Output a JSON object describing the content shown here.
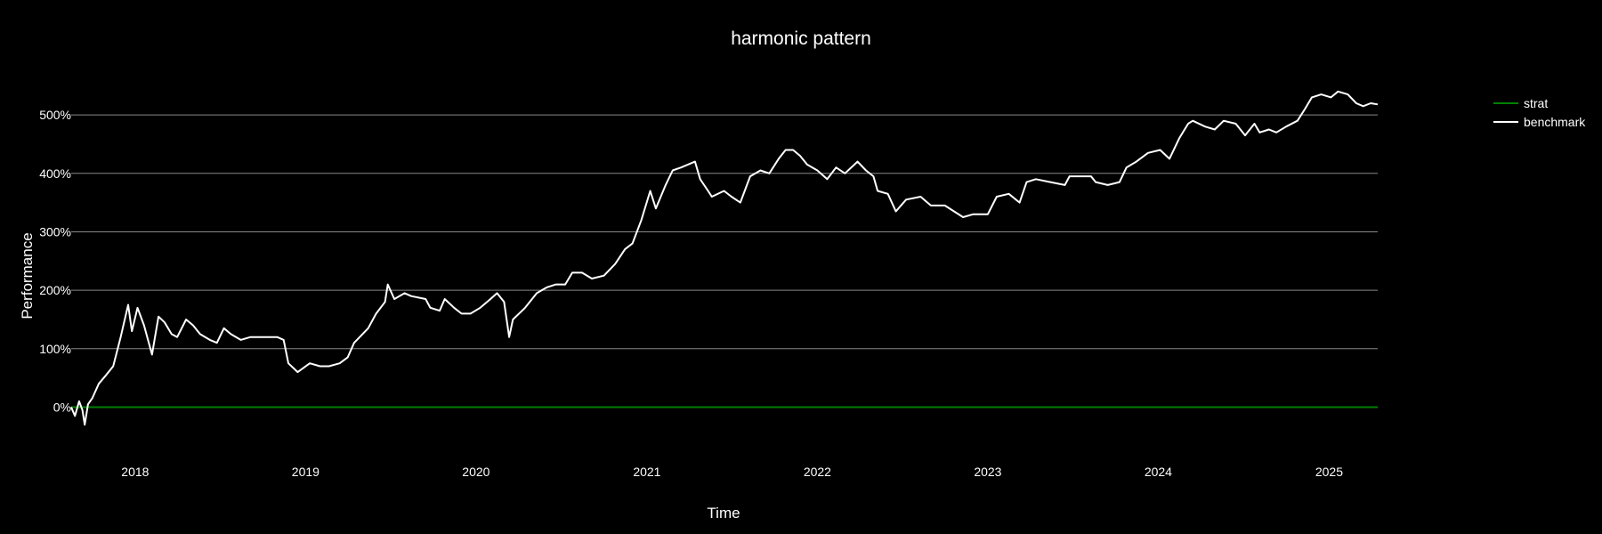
{
  "chart_data": {
    "type": "line",
    "title": "harmonic pattern",
    "xlabel": "Time",
    "ylabel": "Performance",
    "x_ticks": [
      "2018",
      "2019",
      "2020",
      "2021",
      "2022",
      "2023",
      "2024",
      "2025"
    ],
    "y_ticks": [
      {
        "value": 0,
        "label": "0%"
      },
      {
        "value": 100,
        "label": "100%"
      },
      {
        "value": 200,
        "label": "200%"
      },
      {
        "value": 300,
        "label": "300%"
      },
      {
        "value": 400,
        "label": "400%"
      },
      {
        "value": 500,
        "label": "500%"
      }
    ],
    "xlim": [
      "2017-08-17",
      "2025-04-15"
    ],
    "ylim": [
      -80,
      590
    ],
    "grid": "horizontal",
    "legend_position": "top-right",
    "background_color": "#000000",
    "series": [
      {
        "name": "strat",
        "color": "#008000",
        "points": [
          [
            "2017-08-17",
            0
          ],
          [
            "2025-04-15",
            0
          ]
        ]
      },
      {
        "name": "benchmark",
        "color": "#ffffff",
        "points": [
          [
            "2017-08-17",
            0
          ],
          [
            "2017-08-25",
            -15
          ],
          [
            "2017-09-03",
            10
          ],
          [
            "2017-09-10",
            -5
          ],
          [
            "2017-09-15",
            -30
          ],
          [
            "2017-09-22",
            5
          ],
          [
            "2017-10-01",
            15
          ],
          [
            "2017-10-15",
            40
          ],
          [
            "2017-10-31",
            55
          ],
          [
            "2017-11-15",
            70
          ],
          [
            "2017-12-01",
            120
          ],
          [
            "2017-12-17",
            175
          ],
          [
            "2017-12-25",
            130
          ],
          [
            "2018-01-06",
            170
          ],
          [
            "2018-01-20",
            140
          ],
          [
            "2018-02-06",
            90
          ],
          [
            "2018-02-20",
            155
          ],
          [
            "2018-03-05",
            145
          ],
          [
            "2018-03-20",
            125
          ],
          [
            "2018-04-01",
            120
          ],
          [
            "2018-04-20",
            150
          ],
          [
            "2018-05-05",
            140
          ],
          [
            "2018-05-20",
            125
          ],
          [
            "2018-06-10",
            115
          ],
          [
            "2018-06-25",
            110
          ],
          [
            "2018-07-10",
            135
          ],
          [
            "2018-07-25",
            125
          ],
          [
            "2018-08-15",
            115
          ],
          [
            "2018-09-05",
            120
          ],
          [
            "2018-10-01",
            120
          ],
          [
            "2018-11-01",
            120
          ],
          [
            "2018-11-15",
            115
          ],
          [
            "2018-11-25",
            75
          ],
          [
            "2018-12-15",
            60
          ],
          [
            "2019-01-10",
            75
          ],
          [
            "2019-02-01",
            70
          ],
          [
            "2019-02-20",
            70
          ],
          [
            "2019-03-15",
            75
          ],
          [
            "2019-04-01",
            85
          ],
          [
            "2019-04-15",
            110
          ],
          [
            "2019-05-15",
            135
          ],
          [
            "2019-06-01",
            160
          ],
          [
            "2019-06-20",
            180
          ],
          [
            "2019-06-26",
            210
          ],
          [
            "2019-07-10",
            185
          ],
          [
            "2019-08-01",
            195
          ],
          [
            "2019-08-15",
            190
          ],
          [
            "2019-09-15",
            185
          ],
          [
            "2019-09-25",
            170
          ],
          [
            "2019-10-15",
            165
          ],
          [
            "2019-10-26",
            185
          ],
          [
            "2019-11-15",
            170
          ],
          [
            "2019-12-01",
            160
          ],
          [
            "2019-12-20",
            160
          ],
          [
            "2020-01-10",
            170
          ],
          [
            "2020-02-01",
            185
          ],
          [
            "2020-02-15",
            195
          ],
          [
            "2020-03-01",
            180
          ],
          [
            "2020-03-12",
            120
          ],
          [
            "2020-03-20",
            150
          ],
          [
            "2020-04-15",
            170
          ],
          [
            "2020-05-10",
            195
          ],
          [
            "2020-06-01",
            205
          ],
          [
            "2020-06-20",
            210
          ],
          [
            "2020-07-10",
            210
          ],
          [
            "2020-07-25",
            230
          ],
          [
            "2020-08-15",
            230
          ],
          [
            "2020-09-05",
            220
          ],
          [
            "2020-10-01",
            225
          ],
          [
            "2020-10-25",
            245
          ],
          [
            "2020-11-15",
            270
          ],
          [
            "2020-12-01",
            280
          ],
          [
            "2020-12-20",
            320
          ],
          [
            "2021-01-08",
            370
          ],
          [
            "2021-01-20",
            340
          ],
          [
            "2021-02-10",
            380
          ],
          [
            "2021-02-25",
            405
          ],
          [
            "2021-03-15",
            410
          ],
          [
            "2021-04-14",
            420
          ],
          [
            "2021-04-25",
            390
          ],
          [
            "2021-05-12",
            370
          ],
          [
            "2021-05-20",
            360
          ],
          [
            "2021-06-15",
            370
          ],
          [
            "2021-07-01",
            360
          ],
          [
            "2021-07-20",
            350
          ],
          [
            "2021-08-10",
            395
          ],
          [
            "2021-09-01",
            405
          ],
          [
            "2021-09-20",
            400
          ],
          [
            "2021-10-10",
            425
          ],
          [
            "2021-10-25",
            440
          ],
          [
            "2021-11-10",
            440
          ],
          [
            "2021-11-25",
            430
          ],
          [
            "2021-12-10",
            415
          ],
          [
            "2022-01-01",
            405
          ],
          [
            "2022-01-22",
            390
          ],
          [
            "2022-02-10",
            410
          ],
          [
            "2022-03-01",
            400
          ],
          [
            "2022-03-28",
            420
          ],
          [
            "2022-04-15",
            405
          ],
          [
            "2022-05-01",
            395
          ],
          [
            "2022-05-10",
            370
          ],
          [
            "2022-06-01",
            365
          ],
          [
            "2022-06-18",
            335
          ],
          [
            "2022-07-10",
            355
          ],
          [
            "2022-08-10",
            360
          ],
          [
            "2022-09-01",
            345
          ],
          [
            "2022-10-01",
            345
          ],
          [
            "2022-11-09",
            325
          ],
          [
            "2022-12-01",
            330
          ],
          [
            "2023-01-01",
            330
          ],
          [
            "2023-01-20",
            360
          ],
          [
            "2023-02-15",
            365
          ],
          [
            "2023-03-10",
            350
          ],
          [
            "2023-03-25",
            385
          ],
          [
            "2023-04-14",
            390
          ],
          [
            "2023-05-15",
            385
          ],
          [
            "2023-06-15",
            380
          ],
          [
            "2023-06-25",
            395
          ],
          [
            "2023-07-15",
            395
          ],
          [
            "2023-08-10",
            395
          ],
          [
            "2023-08-20",
            385
          ],
          [
            "2023-09-15",
            380
          ],
          [
            "2023-10-10",
            385
          ],
          [
            "2023-10-25",
            410
          ],
          [
            "2023-11-15",
            420
          ],
          [
            "2023-12-10",
            435
          ],
          [
            "2024-01-05",
            440
          ],
          [
            "2024-01-25",
            425
          ],
          [
            "2024-02-15",
            460
          ],
          [
            "2024-03-05",
            485
          ],
          [
            "2024-03-15",
            490
          ],
          [
            "2024-04-10",
            480
          ],
          [
            "2024-05-01",
            475
          ],
          [
            "2024-05-20",
            490
          ],
          [
            "2024-06-15",
            485
          ],
          [
            "2024-07-05",
            465
          ],
          [
            "2024-07-25",
            485
          ],
          [
            "2024-08-05",
            470
          ],
          [
            "2024-08-25",
            475
          ],
          [
            "2024-09-10",
            470
          ],
          [
            "2024-10-01",
            480
          ],
          [
            "2024-10-25",
            490
          ],
          [
            "2024-11-10",
            510
          ],
          [
            "2024-11-25",
            530
          ],
          [
            "2024-12-15",
            535
          ],
          [
            "2025-01-05",
            530
          ],
          [
            "2025-01-20",
            540
          ],
          [
            "2025-02-10",
            535
          ],
          [
            "2025-02-28",
            520
          ],
          [
            "2025-03-15",
            515
          ],
          [
            "2025-03-31",
            520
          ],
          [
            "2025-04-15",
            518
          ]
        ]
      }
    ]
  }
}
